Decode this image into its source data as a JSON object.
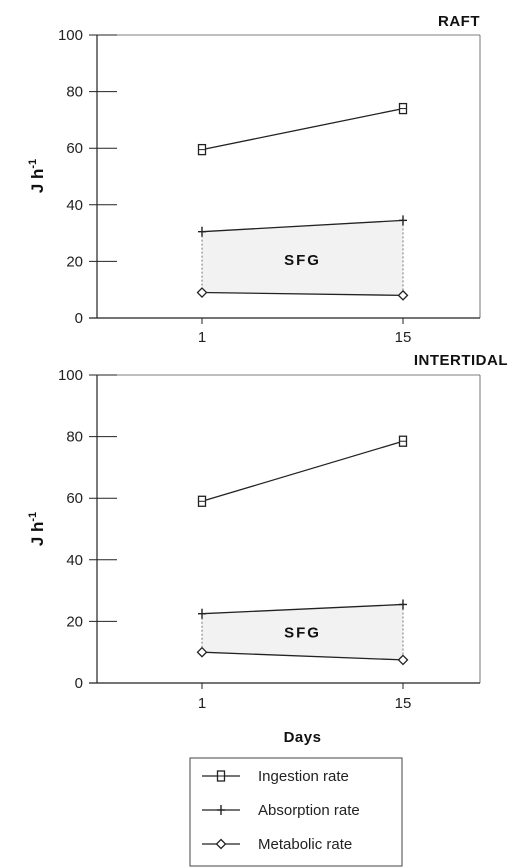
{
  "chart_data": [
    {
      "type": "line",
      "title": "RAFT",
      "xlabel": "",
      "ylabel": "J h-1",
      "ylim": [
        0,
        100
      ],
      "yticks": [
        0,
        20,
        40,
        60,
        80,
        100
      ],
      "x": [
        1,
        15
      ],
      "x_tick_labels": [
        "1",
        "15"
      ],
      "series": [
        {
          "name": "Ingestion rate",
          "marker": "square",
          "values": [
            59.5,
            74
          ]
        },
        {
          "name": "Absorption rate",
          "marker": "plus",
          "values": [
            30.5,
            34.5
          ]
        },
        {
          "name": "Metabolic rate",
          "marker": "diamond",
          "values": [
            9,
            8
          ]
        }
      ],
      "annotation": "SFG",
      "grid": false
    },
    {
      "type": "line",
      "title": "INTERTIDAL",
      "xlabel": "Days",
      "ylabel": "J h-1",
      "ylim": [
        0,
        100
      ],
      "yticks": [
        0,
        20,
        40,
        60,
        80,
        100
      ],
      "x": [
        1,
        15
      ],
      "x_tick_labels": [
        "1",
        "15"
      ],
      "series": [
        {
          "name": "Ingestion rate",
          "marker": "square",
          "values": [
            59,
            78.5
          ]
        },
        {
          "name": "Absorption rate",
          "marker": "plus",
          "values": [
            22.5,
            25.5
          ]
        },
        {
          "name": "Metabolic rate",
          "marker": "diamond",
          "values": [
            10,
            7.5
          ]
        }
      ],
      "annotation": "SFG",
      "grid": false
    }
  ],
  "legend": [
    {
      "label": "Ingestion rate",
      "marker": "square"
    },
    {
      "label": "Absorption rate",
      "marker": "plus"
    },
    {
      "label": "Metabolic rate",
      "marker": "diamond"
    }
  ],
  "colors": {
    "line": "#222222",
    "sfg_fill": "#f2f2f2"
  }
}
